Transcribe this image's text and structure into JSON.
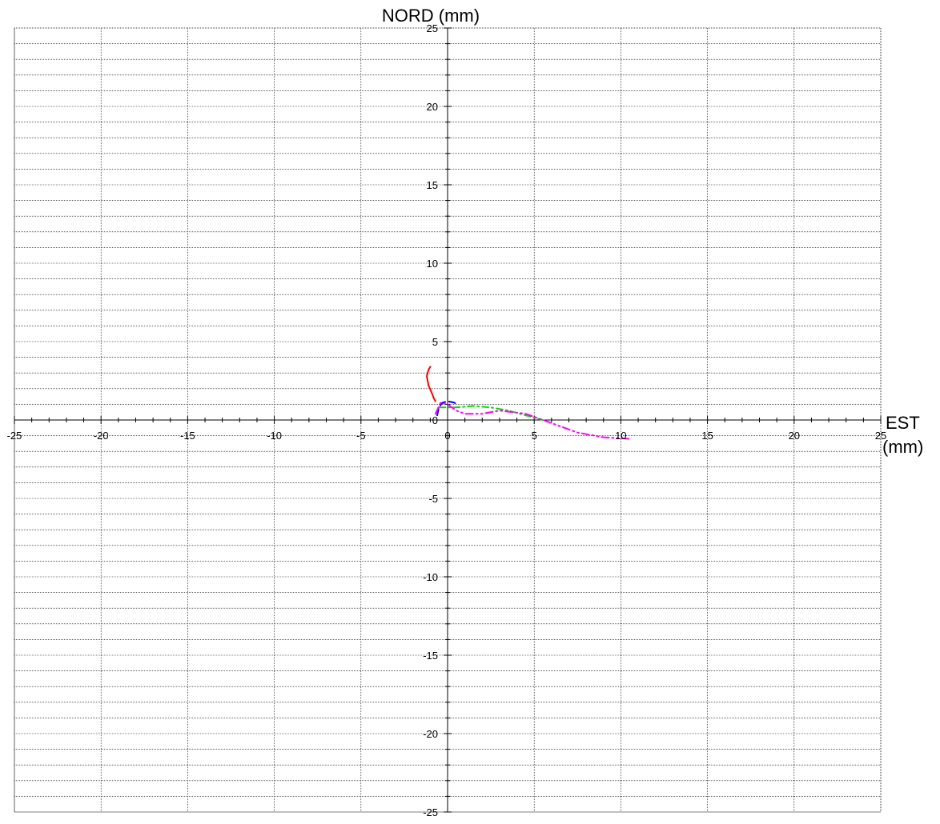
{
  "chart_data": {
    "type": "line",
    "title": "",
    "xlabel": "EST",
    "xunit": "(mm)",
    "ylabel": "NORD (mm)",
    "xlim": [
      -25,
      25
    ],
    "ylim": [
      -25,
      25
    ],
    "x_ticks": [
      -25,
      -20,
      -15,
      -10,
      -5,
      0,
      5,
      10,
      15,
      20,
      25
    ],
    "y_ticks": [
      -25,
      -20,
      -15,
      -10,
      -5,
      0,
      5,
      10,
      15,
      20,
      25
    ],
    "x_tick_labels": [
      "-25",
      "-20",
      "-15",
      "-10",
      "-5",
      "0",
      "5",
      "10",
      "15",
      "20",
      "25"
    ],
    "y_tick_labels": [
      "-25",
      "-20",
      "-15",
      "-10",
      "-5",
      "0",
      "5",
      "10",
      "15",
      "20",
      "25"
    ],
    "grid": true,
    "legend": "none",
    "series": [
      {
        "color": "#ff0000",
        "dash": "solid",
        "x": [
          -1.0,
          -1.1,
          -1.2,
          -1.1,
          -0.9,
          -0.8,
          -0.7
        ],
        "y": [
          3.4,
          3.2,
          2.8,
          2.2,
          1.7,
          1.4,
          1.2
        ]
      },
      {
        "color": "#0000ff",
        "dash": "dashed",
        "x": [
          -0.6,
          -0.5,
          -0.3,
          0.0,
          0.4,
          0.6
        ],
        "y": [
          0.3,
          0.8,
          1.1,
          1.2,
          1.1,
          0.9
        ]
      },
      {
        "color": "#00dd00",
        "dash": "dashdot",
        "x": [
          -0.5,
          0.0,
          0.5,
          1.5,
          2.5,
          3.5,
          4.5,
          5.5
        ],
        "y": [
          0.8,
          0.8,
          0.8,
          0.9,
          0.8,
          0.6,
          0.3,
          0.0
        ]
      },
      {
        "color": "#ff00ff",
        "dash": "dashdotdot",
        "x": [
          -0.7,
          -0.4,
          0.0,
          0.5,
          1.0,
          2.0,
          3.0,
          4.5,
          6.0,
          7.5,
          9.0,
          10.5
        ],
        "y": [
          0.4,
          1.1,
          1.0,
          0.6,
          0.4,
          0.4,
          0.6,
          0.4,
          -0.2,
          -0.8,
          -1.1,
          -1.2
        ]
      }
    ]
  }
}
